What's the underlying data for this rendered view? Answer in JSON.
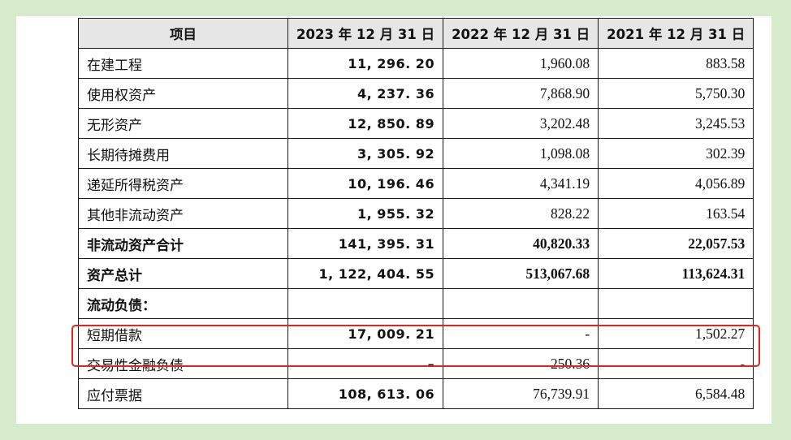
{
  "table": {
    "headers": [
      "项目",
      "2023 年 12 月 31 日",
      "2022 年 12 月 31 日",
      "2021 年 12 月 31 日"
    ],
    "rows": [
      {
        "label": "在建工程",
        "v2023": "11, 296. 20",
        "v2022": "1,960.08",
        "v2021": "883.58",
        "bold": false
      },
      {
        "label": "使用权资产",
        "v2023": "4, 237. 36",
        "v2022": "7,868.90",
        "v2021": "5,750.30",
        "bold": false
      },
      {
        "label": "无形资产",
        "v2023": "12, 850. 89",
        "v2022": "3,202.48",
        "v2021": "3,245.53",
        "bold": false
      },
      {
        "label": "长期待摊费用",
        "v2023": "3, 305. 92",
        "v2022": "1,098.08",
        "v2021": "302.39",
        "bold": false
      },
      {
        "label": "递延所得税资产",
        "v2023": "10, 196. 46",
        "v2022": "4,341.19",
        "v2021": "4,056.89",
        "bold": false
      },
      {
        "label": "其他非流动资产",
        "v2023": "1, 955. 32",
        "v2022": "828.22",
        "v2021": "163.54",
        "bold": false
      },
      {
        "label": "非流动资产合计",
        "v2023": "141, 395. 31",
        "v2022": "40,820.33",
        "v2021": "22,057.53",
        "bold": true
      },
      {
        "label": "资产总计",
        "v2023": "1, 122, 404. 55",
        "v2022": "513,067.68",
        "v2021": "113,624.31",
        "bold": true
      },
      {
        "label": "流动负债：",
        "v2023": "",
        "v2022": "",
        "v2021": "",
        "bold": true
      },
      {
        "label": "短期借款",
        "v2023": "17, 009. 21",
        "v2022": "-",
        "v2021": "1,502.27",
        "bold": false
      },
      {
        "label": "交易性金融负债",
        "v2023": "–",
        "v2022": "250.36",
        "v2021": "-",
        "bold": false
      },
      {
        "label": "应付票据",
        "v2023": "108, 613. 06",
        "v2022": "76,739.91",
        "v2021": "6,584.48",
        "bold": false
      }
    ]
  },
  "highlight": {
    "row_label": "短期借款",
    "color": "#e3261b"
  },
  "colors": {
    "background": "#d5ebcc",
    "header_fill": "#e6e6e6"
  }
}
